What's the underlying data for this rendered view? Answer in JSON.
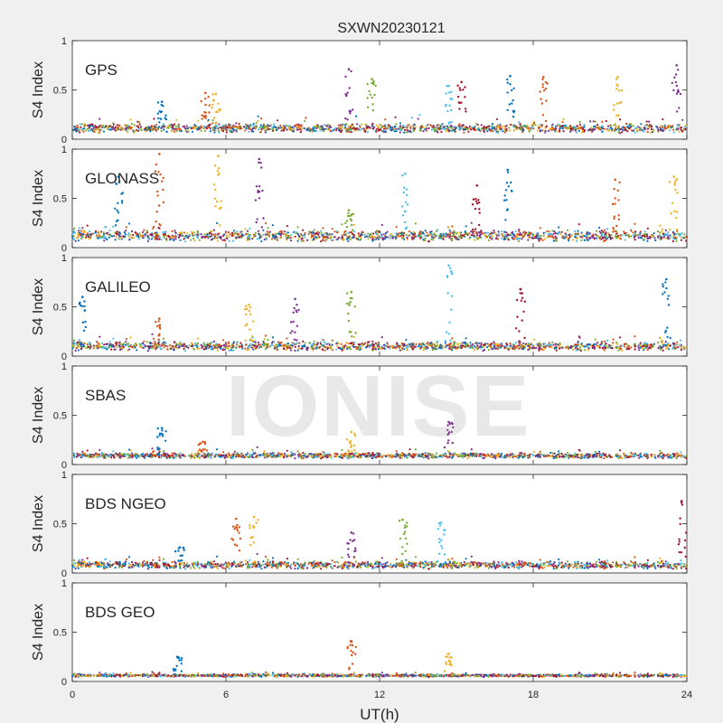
{
  "figure": {
    "title": "SXWN20230121",
    "watermark": "IONISE"
  },
  "chart_data": {
    "type": "scatter",
    "title": "SXWN20230121",
    "xlabel": "UT(h)",
    "ylabel": "S4 Index",
    "xlim": [
      0,
      24
    ],
    "ylim": [
      0,
      1
    ],
    "x_ticks": [
      "0",
      "6",
      "12",
      "18",
      "24"
    ],
    "y_ticks": [
      "0",
      "0.5",
      "1"
    ],
    "grid": false,
    "series_colors": [
      "#0072bd",
      "#d95319",
      "#edb120",
      "#7e2f8e",
      "#77ac30",
      "#4dbeee",
      "#a2142f"
    ],
    "panels": [
      {
        "label": "GPS",
        "baseline": 0.11,
        "noise": 0.05,
        "spikes": [
          [
            3.5,
            0.38
          ],
          [
            5.2,
            0.47
          ],
          [
            5.6,
            0.46
          ],
          [
            10.8,
            0.71
          ],
          [
            11.7,
            0.61
          ],
          [
            14.7,
            0.54
          ],
          [
            15.2,
            0.58
          ],
          [
            17.1,
            0.64
          ],
          [
            18.4,
            0.63
          ],
          [
            21.3,
            0.63
          ],
          [
            23.6,
            0.75
          ]
        ]
      },
      {
        "label": "GLONASS",
        "baseline": 0.12,
        "noise": 0.06,
        "spikes": [
          [
            1.8,
            0.72
          ],
          [
            3.4,
            0.95
          ],
          [
            5.7,
            0.93
          ],
          [
            7.3,
            0.9
          ],
          [
            10.8,
            0.38
          ],
          [
            13.0,
            0.75
          ],
          [
            15.8,
            0.63
          ],
          [
            17.0,
            0.79
          ],
          [
            21.2,
            0.69
          ],
          [
            23.5,
            0.72
          ]
        ]
      },
      {
        "label": "GALILEO",
        "baseline": 0.1,
        "noise": 0.05,
        "spikes": [
          [
            0.4,
            0.6
          ],
          [
            3.4,
            0.38
          ],
          [
            6.9,
            0.52
          ],
          [
            8.7,
            0.58
          ],
          [
            10.9,
            0.65
          ],
          [
            14.7,
            0.92
          ],
          [
            17.5,
            0.68
          ],
          [
            23.2,
            0.78
          ]
        ]
      },
      {
        "label": "SBAS",
        "baseline": 0.09,
        "noise": 0.03,
        "spikes": [
          [
            3.5,
            0.37
          ],
          [
            5.1,
            0.23
          ],
          [
            10.9,
            0.33
          ],
          [
            14.7,
            0.43
          ]
        ]
      },
      {
        "label": "BDS NGEO",
        "baseline": 0.08,
        "noise": 0.04,
        "spikes": [
          [
            4.2,
            0.26
          ],
          [
            6.4,
            0.55
          ],
          [
            7.1,
            0.57
          ],
          [
            10.9,
            0.41
          ],
          [
            12.9,
            0.54
          ],
          [
            14.4,
            0.51
          ],
          [
            23.8,
            0.73
          ]
        ]
      },
      {
        "label": "BDS GEO",
        "baseline": 0.06,
        "noise": 0.015,
        "spikes": [
          [
            4.1,
            0.25
          ],
          [
            10.9,
            0.41
          ],
          [
            14.7,
            0.28
          ]
        ]
      }
    ]
  }
}
